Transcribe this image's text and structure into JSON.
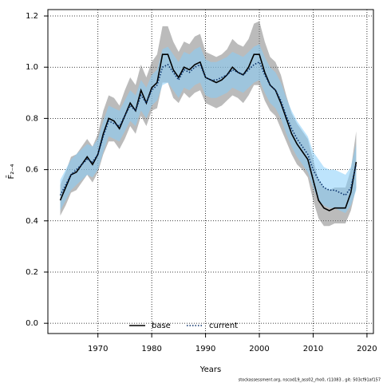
{
  "chart_data": {
    "type": "line",
    "xlabel": "Years",
    "ylabel": "F̄₂₋₄",
    "footer": "stockassessment.org, nscod19_ass02_rho0, r11083 , git: 503cf91af157",
    "x": [
      1963,
      1964,
      1965,
      1966,
      1967,
      1968,
      1969,
      1970,
      1971,
      1972,
      1973,
      1974,
      1975,
      1976,
      1977,
      1978,
      1979,
      1980,
      1981,
      1982,
      1983,
      1984,
      1985,
      1986,
      1987,
      1988,
      1989,
      1990,
      1991,
      1992,
      1993,
      1994,
      1995,
      1996,
      1997,
      1998,
      1999,
      2000,
      2001,
      2002,
      2003,
      2004,
      2005,
      2006,
      2007,
      2008,
      2009,
      2010,
      2011,
      2012,
      2013,
      2014,
      2015,
      2016,
      2017,
      2018
    ],
    "series": [
      {
        "name": "base",
        "color": "#000000",
        "band_color": "rgba(120,120,120,0.5)",
        "dash": "solid",
        "values": [
          0.48,
          0.53,
          0.58,
          0.59,
          0.62,
          0.65,
          0.62,
          0.66,
          0.74,
          0.8,
          0.79,
          0.76,
          0.81,
          0.86,
          0.83,
          0.91,
          0.86,
          0.92,
          0.94,
          1.05,
          1.05,
          0.99,
          0.96,
          1.0,
          0.99,
          1.01,
          1.02,
          0.96,
          0.95,
          0.94,
          0.95,
          0.97,
          1.0,
          0.98,
          0.97,
          1.0,
          1.05,
          1.05,
          0.98,
          0.93,
          0.91,
          0.86,
          0.8,
          0.74,
          0.7,
          0.67,
          0.64,
          0.56,
          0.48,
          0.45,
          0.44,
          0.45,
          0.45,
          0.45,
          0.51,
          0.63
        ],
        "lower": [
          0.42,
          0.46,
          0.51,
          0.52,
          0.55,
          0.58,
          0.55,
          0.59,
          0.66,
          0.71,
          0.71,
          0.68,
          0.72,
          0.77,
          0.74,
          0.81,
          0.77,
          0.83,
          0.84,
          0.94,
          0.94,
          0.88,
          0.86,
          0.9,
          0.88,
          0.9,
          0.91,
          0.86,
          0.85,
          0.84,
          0.85,
          0.87,
          0.89,
          0.88,
          0.86,
          0.89,
          0.93,
          0.93,
          0.87,
          0.83,
          0.81,
          0.76,
          0.71,
          0.66,
          0.62,
          0.6,
          0.57,
          0.48,
          0.41,
          0.38,
          0.38,
          0.39,
          0.39,
          0.39,
          0.44,
          0.53
        ],
        "upper": [
          0.54,
          0.59,
          0.65,
          0.66,
          0.69,
          0.72,
          0.69,
          0.74,
          0.83,
          0.89,
          0.88,
          0.85,
          0.91,
          0.96,
          0.93,
          1.01,
          0.96,
          1.02,
          1.05,
          1.16,
          1.16,
          1.1,
          1.06,
          1.1,
          1.09,
          1.12,
          1.13,
          1.06,
          1.05,
          1.04,
          1.05,
          1.07,
          1.11,
          1.09,
          1.08,
          1.11,
          1.17,
          1.18,
          1.1,
          1.04,
          1.02,
          0.97,
          0.89,
          0.82,
          0.78,
          0.75,
          0.72,
          0.64,
          0.56,
          0.53,
          0.52,
          0.53,
          0.53,
          0.53,
          0.6,
          0.75
        ]
      },
      {
        "name": "current",
        "color": "#08306b",
        "band_color": "rgba(135,206,250,0.55)",
        "dash": "dotted",
        "values": [
          0.5,
          0.54,
          0.58,
          0.6,
          0.62,
          0.64,
          0.63,
          0.66,
          0.73,
          0.79,
          0.78,
          0.77,
          0.81,
          0.85,
          0.83,
          0.89,
          0.86,
          0.91,
          0.93,
          1.0,
          1.01,
          0.98,
          0.95,
          0.99,
          0.98,
          1.0,
          1.01,
          0.96,
          0.95,
          0.95,
          0.96,
          0.97,
          0.99,
          0.98,
          0.97,
          0.99,
          1.01,
          1.02,
          0.97,
          0.93,
          0.91,
          0.87,
          0.81,
          0.76,
          0.72,
          0.69,
          0.66,
          0.6,
          0.56,
          0.53,
          0.52,
          0.52,
          0.51,
          0.5,
          0.53,
          0.62
        ],
        "lower": [
          0.44,
          0.48,
          0.52,
          0.54,
          0.56,
          0.58,
          0.57,
          0.6,
          0.67,
          0.73,
          0.72,
          0.71,
          0.75,
          0.79,
          0.77,
          0.83,
          0.8,
          0.85,
          0.87,
          0.93,
          0.94,
          0.91,
          0.88,
          0.92,
          0.91,
          0.93,
          0.94,
          0.89,
          0.88,
          0.88,
          0.89,
          0.9,
          0.92,
          0.91,
          0.9,
          0.92,
          0.94,
          0.95,
          0.9,
          0.86,
          0.84,
          0.8,
          0.74,
          0.69,
          0.65,
          0.62,
          0.59,
          0.53,
          0.48,
          0.46,
          0.45,
          0.45,
          0.44,
          0.43,
          0.46,
          0.52
        ],
        "upper": [
          0.56,
          0.6,
          0.64,
          0.66,
          0.68,
          0.7,
          0.69,
          0.72,
          0.79,
          0.85,
          0.84,
          0.83,
          0.87,
          0.91,
          0.89,
          0.95,
          0.92,
          0.97,
          0.99,
          1.07,
          1.08,
          1.05,
          1.02,
          1.06,
          1.05,
          1.07,
          1.08,
          1.03,
          1.02,
          1.02,
          1.03,
          1.04,
          1.06,
          1.05,
          1.04,
          1.06,
          1.08,
          1.09,
          1.04,
          1.0,
          0.98,
          0.94,
          0.88,
          0.83,
          0.79,
          0.76,
          0.73,
          0.67,
          0.64,
          0.61,
          0.6,
          0.6,
          0.59,
          0.58,
          0.61,
          0.7
        ]
      }
    ],
    "xlim": [
      1960.7,
      2021.2
    ],
    "ylim": [
      -0.04,
      1.225
    ],
    "xticks": [
      1970,
      1980,
      1990,
      2000,
      2010,
      2020
    ],
    "yticks": [
      {
        "value": 0,
        "label": "0.0"
      },
      0.2,
      0.4,
      0.6,
      0.8,
      {
        "value": 1,
        "label": "1.0"
      },
      1.2
    ],
    "grid": true,
    "legend": "bottom"
  }
}
